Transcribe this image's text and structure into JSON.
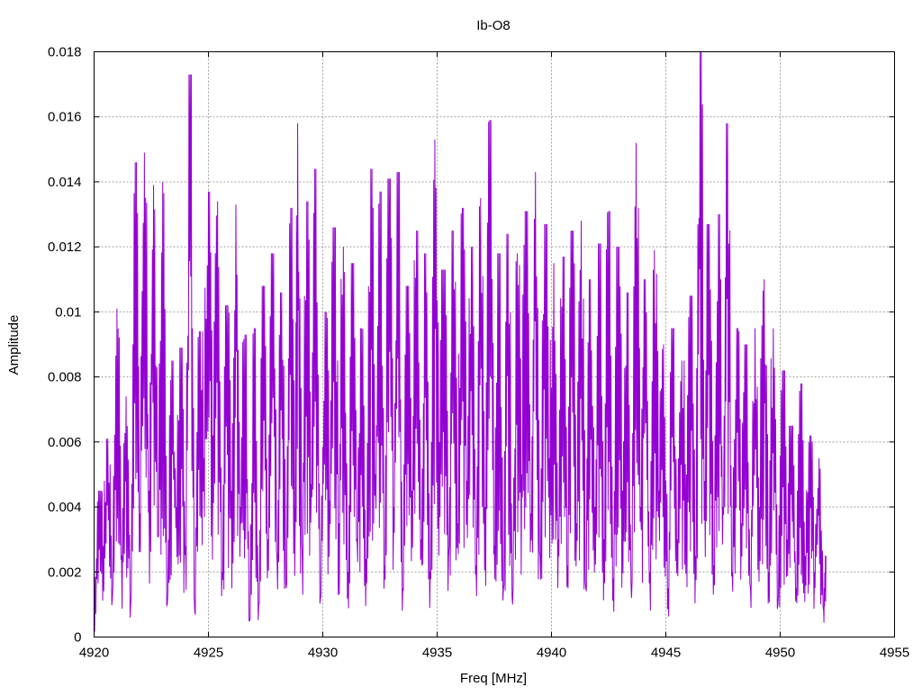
{
  "chart_data": {
    "type": "line",
    "title": "Ib-O8",
    "xlabel": "Freq [MHz]",
    "ylabel": "Amplitude",
    "xlim": [
      4920,
      4955
    ],
    "ylim": [
      0,
      0.018
    ],
    "x_ticks": [
      "4920",
      "4925",
      "4930",
      "4935",
      "4940",
      "4945",
      "4950",
      "4955"
    ],
    "y_ticks": [
      "0",
      "0.002",
      "0.004",
      "0.006",
      "0.008",
      "0.01",
      "0.012",
      "0.014",
      "0.016",
      "0.018"
    ],
    "grid": true,
    "legend": "none",
    "series": [
      {
        "color": "#9400d3",
        "x_start": 4920,
        "x_end": 4952,
        "points": [
          [
            4920.0,
            0.0002
          ],
          [
            4920.2,
            0.0045
          ],
          [
            4920.4,
            0.0028
          ],
          [
            4920.6,
            0.0061
          ],
          [
            4920.8,
            0.0012
          ],
          [
            4921.0,
            0.0101
          ],
          [
            4921.2,
            0.0025
          ],
          [
            4921.4,
            0.0074
          ],
          [
            4921.6,
            0.001
          ],
          [
            4921.8,
            0.0146
          ],
          [
            4922.0,
            0.0038
          ],
          [
            4922.2,
            0.0149
          ],
          [
            4922.4,
            0.0045
          ],
          [
            4922.6,
            0.0139
          ],
          [
            4922.8,
            0.0031
          ],
          [
            4923.0,
            0.014
          ],
          [
            4923.2,
            0.001
          ],
          [
            4923.4,
            0.0085
          ],
          [
            4923.6,
            0.004
          ],
          [
            4923.8,
            0.0089
          ],
          [
            4924.0,
            0.0028
          ],
          [
            4924.2,
            0.0173
          ],
          [
            4924.4,
            0.0008
          ],
          [
            4924.6,
            0.0094
          ],
          [
            4924.8,
            0.0055
          ],
          [
            4925.0,
            0.0137
          ],
          [
            4925.2,
            0.0062
          ],
          [
            4925.4,
            0.0134
          ],
          [
            4925.6,
            0.002
          ],
          [
            4925.8,
            0.0102
          ],
          [
            4926.0,
            0.0045
          ],
          [
            4926.2,
            0.0133
          ],
          [
            4926.4,
            0.004
          ],
          [
            4926.6,
            0.0093
          ],
          [
            4926.8,
            0.0005
          ],
          [
            4927.0,
            0.0095
          ],
          [
            4927.2,
            0.001
          ],
          [
            4927.4,
            0.0108
          ],
          [
            4927.6,
            0.003
          ],
          [
            4927.8,
            0.0118
          ],
          [
            4928.0,
            0.0024
          ],
          [
            4928.2,
            0.0106
          ],
          [
            4928.4,
            0.0015
          ],
          [
            4928.6,
            0.0132
          ],
          [
            4928.8,
            0.004
          ],
          [
            4928.9,
            0.0158
          ],
          [
            4929.1,
            0.0025
          ],
          [
            4929.3,
            0.0134
          ],
          [
            4929.5,
            0.0047
          ],
          [
            4929.7,
            0.0144
          ],
          [
            4929.9,
            0.0012
          ],
          [
            4930.1,
            0.01
          ],
          [
            4930.3,
            0.0042
          ],
          [
            4930.5,
            0.0126
          ],
          [
            4930.7,
            0.0035
          ],
          [
            4930.9,
            0.012
          ],
          [
            4931.1,
            0.002
          ],
          [
            4931.3,
            0.0115
          ],
          [
            4931.5,
            0.003
          ],
          [
            4931.7,
            0.0095
          ],
          [
            4931.9,
            0.0024
          ],
          [
            4932.1,
            0.0144
          ],
          [
            4932.3,
            0.005
          ],
          [
            4932.5,
            0.0137
          ],
          [
            4932.7,
            0.0022
          ],
          [
            4932.9,
            0.0141
          ],
          [
            4933.1,
            0.004
          ],
          [
            4933.3,
            0.0143
          ],
          [
            4933.5,
            0.0015
          ],
          [
            4933.7,
            0.0108
          ],
          [
            4933.9,
            0.0045
          ],
          [
            4934.1,
            0.0125
          ],
          [
            4934.3,
            0.003
          ],
          [
            4934.5,
            0.0118
          ],
          [
            4934.7,
            0.002
          ],
          [
            4934.9,
            0.0153
          ],
          [
            4935.1,
            0.006
          ],
          [
            4935.3,
            0.0113
          ],
          [
            4935.5,
            0.0025
          ],
          [
            4935.7,
            0.0125
          ],
          [
            4935.9,
            0.0035
          ],
          [
            4936.1,
            0.0132
          ],
          [
            4936.3,
            0.0048
          ],
          [
            4936.5,
            0.012
          ],
          [
            4936.7,
            0.0022
          ],
          [
            4936.9,
            0.0135
          ],
          [
            4937.1,
            0.004
          ],
          [
            4937.3,
            0.0159
          ],
          [
            4937.5,
            0.0028
          ],
          [
            4937.7,
            0.0118
          ],
          [
            4937.9,
            0.0015
          ],
          [
            4938.1,
            0.0124
          ],
          [
            4938.3,
            0.001
          ],
          [
            4938.5,
            0.0118
          ],
          [
            4938.7,
            0.005
          ],
          [
            4938.9,
            0.0131
          ],
          [
            4939.1,
            0.0038
          ],
          [
            4939.3,
            0.0143
          ],
          [
            4939.5,
            0.0025
          ],
          [
            4939.7,
            0.0127
          ],
          [
            4939.9,
            0.0055
          ],
          [
            4940.1,
            0.0115
          ],
          [
            4940.3,
            0.003
          ],
          [
            4940.5,
            0.0117
          ],
          [
            4940.7,
            0.0022
          ],
          [
            4940.9,
            0.0125
          ],
          [
            4941.1,
            0.0035
          ],
          [
            4941.3,
            0.0128
          ],
          [
            4941.5,
            0.0015
          ],
          [
            4941.7,
            0.011
          ],
          [
            4941.9,
            0.004
          ],
          [
            4942.1,
            0.0121
          ],
          [
            4942.3,
            0.003
          ],
          [
            4942.5,
            0.0131
          ],
          [
            4942.7,
            0.0018
          ],
          [
            4942.9,
            0.012
          ],
          [
            4943.1,
            0.0045
          ],
          [
            4943.3,
            0.0106
          ],
          [
            4943.5,
            0.0012
          ],
          [
            4943.7,
            0.0152
          ],
          [
            4943.9,
            0.004
          ],
          [
            4944.1,
            0.011
          ],
          [
            4944.3,
            0.002
          ],
          [
            4944.5,
            0.0119
          ],
          [
            4944.7,
            0.0045
          ],
          [
            4944.9,
            0.009
          ],
          [
            4945.1,
            0.0015
          ],
          [
            4945.3,
            0.0095
          ],
          [
            4945.5,
            0.003
          ],
          [
            4945.7,
            0.0085
          ],
          [
            4945.9,
            0.005
          ],
          [
            4946.1,
            0.0105
          ],
          [
            4946.3,
            0.0025
          ],
          [
            4946.5,
            0.018
          ],
          [
            4946.7,
            0.0048
          ],
          [
            4946.9,
            0.0127
          ],
          [
            4947.1,
            0.0022
          ],
          [
            4947.3,
            0.013
          ],
          [
            4947.5,
            0.004
          ],
          [
            4947.7,
            0.0158
          ],
          [
            4947.9,
            0.002
          ],
          [
            4948.1,
            0.0095
          ],
          [
            4948.3,
            0.0035
          ],
          [
            4948.5,
            0.009
          ],
          [
            4948.7,
            0.0015
          ],
          [
            4948.9,
            0.0095
          ],
          [
            4949.1,
            0.004
          ],
          [
            4949.3,
            0.011
          ],
          [
            4949.5,
            0.002
          ],
          [
            4949.7,
            0.0095
          ],
          [
            4949.9,
            0.001
          ],
          [
            4950.1,
            0.0082
          ],
          [
            4950.3,
            0.003
          ],
          [
            4950.5,
            0.0065
          ],
          [
            4950.7,
            0.0015
          ],
          [
            4950.9,
            0.0078
          ],
          [
            4951.1,
            0.0025
          ],
          [
            4951.3,
            0.0062
          ],
          [
            4951.5,
            0.002
          ],
          [
            4951.7,
            0.0055
          ],
          [
            4951.9,
            0.0008
          ],
          [
            4952.0,
            0.0025
          ]
        ]
      }
    ]
  }
}
